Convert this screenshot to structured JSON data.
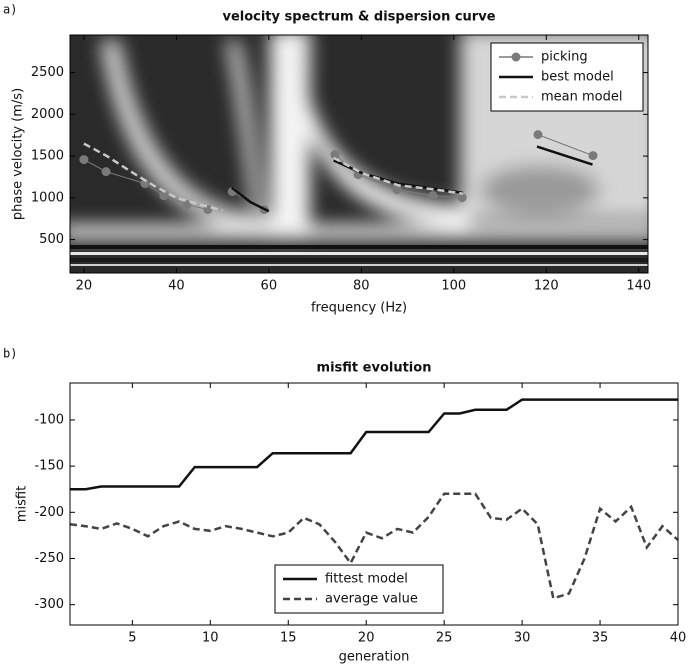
{
  "chart_data": [
    {
      "type": "line",
      "panel_label": "a)",
      "title": "velocity spectrum & dispersion curve",
      "x_label": "frequency (Hz)",
      "y_label": "phase velocity (m/s)",
      "xlim": [
        17,
        142
      ],
      "ylim": [
        100,
        2950
      ],
      "xticks": [
        20,
        40,
        60,
        80,
        100,
        120,
        140
      ],
      "yticks": [
        500,
        1000,
        1500,
        2000,
        2500
      ],
      "legend": "upper right",
      "series": [
        {
          "name": "picking",
          "color": "#7a7a7a",
          "linestyle": "solid",
          "marker": "circle",
          "x": [
            20,
            24.8,
            33.2,
            37.3,
            42.3,
            46.8,
            null,
            52.1,
            59,
            null,
            74.3,
            79.3,
            87.7,
            95.5,
            101.8,
            null,
            118.2,
            130.1
          ],
          "values": [
            1458,
            1314,
            1171,
            1027,
            919,
            859,
            null,
            1075,
            859,
            null,
            1518,
            1278,
            1099,
            1027,
            1003,
            null,
            1757,
            1506
          ]
        },
        {
          "name": "best model",
          "color": "#111111",
          "linestyle": "solid",
          "x": [
            52,
            56,
            60,
            null,
            74,
            80,
            88,
            96,
            102,
            null,
            118,
            130
          ],
          "values": [
            1120,
            950,
            840,
            null,
            1450,
            1300,
            1170,
            1110,
            1060,
            null,
            1614,
            1398
          ]
        },
        {
          "name": "mean model",
          "color": "#c8c8c8",
          "linestyle": "dashed",
          "x": [
            20,
            25,
            30,
            35,
            40,
            45,
            50,
            null,
            74,
            80,
            88,
            96,
            102
          ],
          "values": [
            1650,
            1500,
            1320,
            1150,
            1000,
            920,
            850,
            null,
            1480,
            1300,
            1150,
            1100,
            1050
          ]
        }
      ]
    },
    {
      "type": "line",
      "panel_label": "b)",
      "title": "misfit evolution",
      "x_label": "generation",
      "y_label": "misfit",
      "xlim": [
        1,
        40
      ],
      "ylim": [
        -322,
        -60
      ],
      "xticks": [
        5,
        10,
        15,
        20,
        25,
        30,
        35,
        40
      ],
      "yticks": [
        -100,
        -150,
        -200,
        -250,
        -300
      ],
      "legend": "lower center",
      "x": [
        1,
        2,
        3,
        4,
        5,
        6,
        7,
        8,
        9,
        10,
        11,
        12,
        13,
        14,
        15,
        16,
        17,
        18,
        19,
        20,
        21,
        22,
        23,
        24,
        25,
        26,
        27,
        28,
        29,
        30,
        31,
        32,
        33,
        34,
        35,
        36,
        37,
        38,
        39,
        40
      ],
      "series": [
        {
          "name": "fittest model",
          "color": "#111111",
          "linestyle": "solid",
          "values": [
            -175,
            -175,
            -172,
            -172,
            -172,
            -172,
            -172,
            -172,
            -151,
            -151,
            -151,
            -151,
            -151,
            -136,
            -136,
            -136,
            -136,
            -136,
            -136,
            -113,
            -113,
            -113,
            -113,
            -113,
            -93,
            -93,
            -89,
            -89,
            -89,
            -78,
            -78,
            -78,
            -78,
            -78,
            -78,
            -78,
            -78,
            -78,
            -78,
            -78
          ]
        },
        {
          "name": "average value",
          "color": "#444444",
          "linestyle": "dashed",
          "values": [
            -213,
            -215,
            -218,
            -212,
            -218,
            -226,
            -215,
            -210,
            -218,
            -220,
            -215,
            -218,
            -222,
            -226,
            -222,
            -206,
            -213,
            -232,
            -255,
            -222,
            -228,
            -218,
            -222,
            -205,
            -180,
            -180,
            -180,
            -206,
            -208,
            -196,
            -213,
            -293,
            -288,
            -250,
            -196,
            -210,
            -194,
            -238,
            -215,
            -230
          ]
        }
      ]
    }
  ]
}
